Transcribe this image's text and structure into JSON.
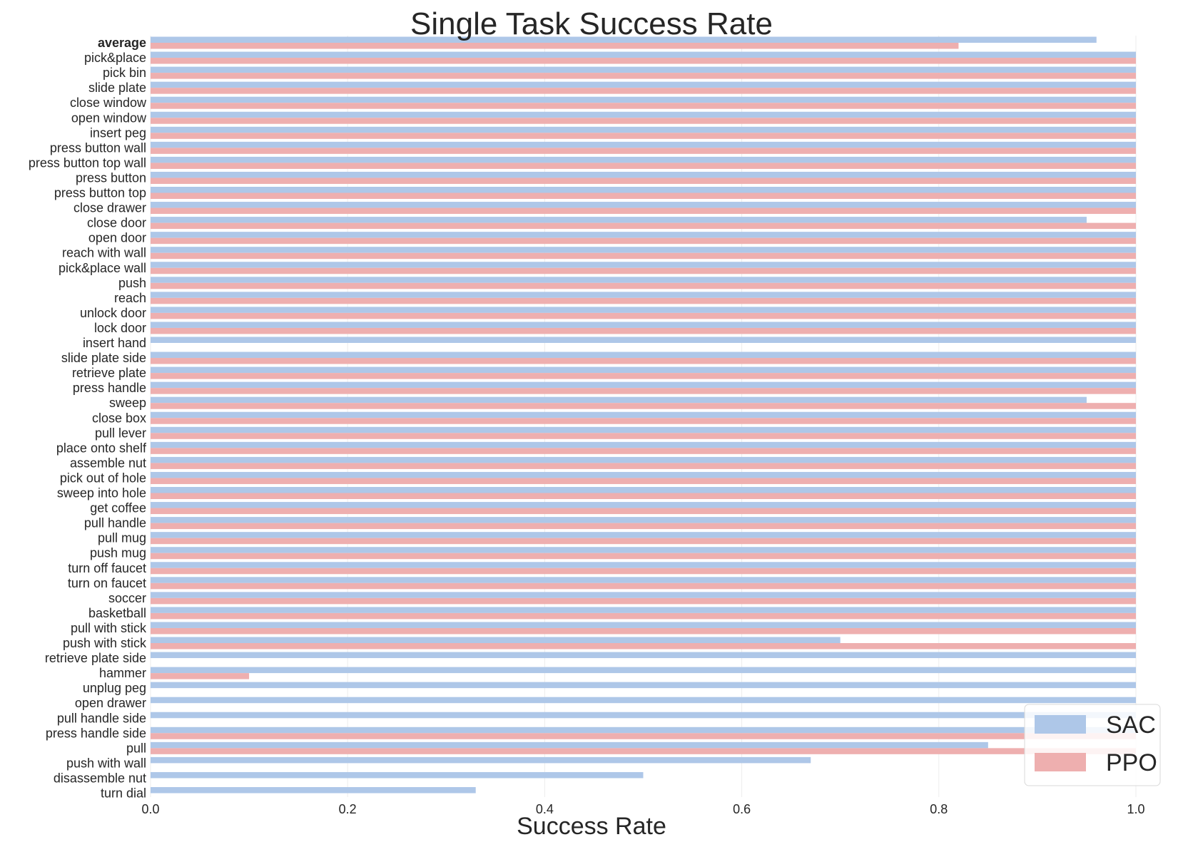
{
  "chart_data": {
    "type": "bar",
    "orientation": "horizontal",
    "title": "Single Task Success Rate",
    "xlabel": "Success Rate",
    "ylabel": "",
    "xlim": [
      0.0,
      1.0
    ],
    "xticks": [
      "0.0",
      "0.2",
      "0.4",
      "0.6",
      "0.8",
      "1.0"
    ],
    "grid": true,
    "legend_position": "bottom-right",
    "categories": [
      "average",
      "pick&place",
      "pick bin",
      "slide plate",
      "close window",
      "open window",
      "insert peg",
      "press button wall",
      "press button top wall",
      "press button",
      "press button top",
      "close drawer",
      "close door",
      "open door",
      "reach with wall",
      "pick&place wall",
      "push",
      "reach",
      "unlock door",
      "lock door",
      "insert hand",
      "slide plate side",
      "retrieve plate",
      "press handle",
      "sweep",
      "close box",
      "pull lever",
      "place onto shelf",
      "assemble nut",
      "pick out of hole",
      "sweep into hole",
      "get coffee",
      "pull handle",
      "pull mug",
      "push mug",
      "turn off faucet",
      "turn on faucet",
      "soccer",
      "basketball",
      "pull with stick",
      "push with stick",
      "retrieve plate side",
      "hammer",
      "unplug peg",
      "open drawer",
      "pull handle side",
      "press handle side",
      "pull",
      "push with wall",
      "disassemble nut",
      "turn dial"
    ],
    "series": [
      {
        "name": "SAC",
        "color": "#aec7e8",
        "values": [
          0.96,
          1.0,
          1.0,
          1.0,
          1.0,
          1.0,
          1.0,
          1.0,
          1.0,
          1.0,
          1.0,
          1.0,
          0.95,
          1.0,
          1.0,
          1.0,
          1.0,
          1.0,
          1.0,
          1.0,
          1.0,
          1.0,
          1.0,
          1.0,
          0.95,
          1.0,
          1.0,
          1.0,
          1.0,
          1.0,
          1.0,
          1.0,
          1.0,
          1.0,
          1.0,
          1.0,
          1.0,
          1.0,
          1.0,
          1.0,
          0.7,
          1.0,
          1.0,
          1.0,
          1.0,
          1.0,
          1.0,
          0.85,
          0.67,
          0.5,
          0.33
        ]
      },
      {
        "name": "PPO",
        "color": "#eeafaf",
        "values": [
          0.82,
          1.0,
          1.0,
          1.0,
          1.0,
          1.0,
          1.0,
          1.0,
          1.0,
          1.0,
          1.0,
          1.0,
          1.0,
          1.0,
          1.0,
          1.0,
          1.0,
          1.0,
          1.0,
          1.0,
          0.0,
          1.0,
          1.0,
          1.0,
          1.0,
          1.0,
          1.0,
          1.0,
          1.0,
          1.0,
          1.0,
          1.0,
          1.0,
          1.0,
          1.0,
          1.0,
          1.0,
          1.0,
          1.0,
          1.0,
          1.0,
          0.0,
          0.1,
          0.0,
          0.0,
          0.0,
          1.0,
          1.0,
          0.0,
          0.0,
          0.0
        ]
      }
    ]
  }
}
